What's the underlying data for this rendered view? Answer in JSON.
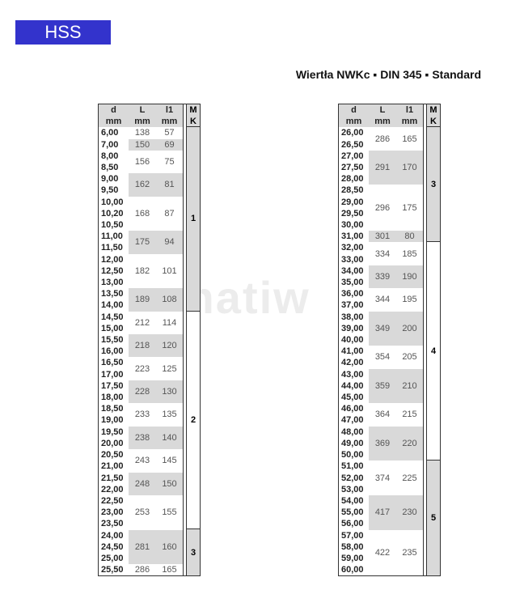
{
  "badge": "HSS",
  "title": "Wiertła NWKc ▪ DIN 345 ▪ Standard",
  "watermark": "matiw",
  "colors": {
    "badge": "#3333cc",
    "shade": "#d9d9d9"
  },
  "headers": {
    "d": "d",
    "L": "L",
    "l1": "l1",
    "mk_top": "M",
    "mk_bottom": "K",
    "unit": "mm"
  },
  "tables": [
    {
      "groups": [
        {
          "d": [
            "6,00"
          ],
          "L": "138",
          "l1": "57",
          "shaded": false
        },
        {
          "d": [
            "7,00"
          ],
          "L": "150",
          "l1": "69",
          "shaded": true
        },
        {
          "d": [
            "8,00",
            "8,50"
          ],
          "L": "156",
          "l1": "75",
          "shaded": false
        },
        {
          "d": [
            "9,00",
            "9,50"
          ],
          "L": "162",
          "l1": "81",
          "shaded": true
        },
        {
          "d": [
            "10,00",
            "10,20",
            "10,50"
          ],
          "L": "168",
          "l1": "87",
          "shaded": false
        },
        {
          "d": [
            "11,00",
            "11,50"
          ],
          "L": "175",
          "l1": "94",
          "shaded": true
        },
        {
          "d": [
            "12,00",
            "12,50",
            "13,00"
          ],
          "L": "182",
          "l1": "101",
          "shaded": false
        },
        {
          "d": [
            "13,50",
            "14,00"
          ],
          "L": "189",
          "l1": "108",
          "shaded": true
        },
        {
          "d": [
            "14,50",
            "15,00"
          ],
          "L": "212",
          "l1": "114",
          "shaded": false
        },
        {
          "d": [
            "15,50",
            "16,00"
          ],
          "L": "218",
          "l1": "120",
          "shaded": true
        },
        {
          "d": [
            "16,50",
            "17,00"
          ],
          "L": "223",
          "l1": "125",
          "shaded": false
        },
        {
          "d": [
            "17,50",
            "18,00"
          ],
          "L": "228",
          "l1": "130",
          "shaded": true
        },
        {
          "d": [
            "18,50",
            "19,00"
          ],
          "L": "233",
          "l1": "135",
          "shaded": false
        },
        {
          "d": [
            "19,50",
            "20,00"
          ],
          "L": "238",
          "l1": "140",
          "shaded": true
        },
        {
          "d": [
            "20,50",
            "21,00"
          ],
          "L": "243",
          "l1": "145",
          "shaded": false
        },
        {
          "d": [
            "21,50",
            "22,00"
          ],
          "L": "248",
          "l1": "150",
          "shaded": true
        },
        {
          "d": [
            "22,50",
            "23,00",
            "23,50"
          ],
          "L": "253",
          "l1": "155",
          "shaded": false
        },
        {
          "d": [
            "24,00",
            "24,50",
            "25,00"
          ],
          "L": "281",
          "l1": "160",
          "shaded": true
        },
        {
          "d": [
            "25,50"
          ],
          "L": "286",
          "l1": "165",
          "shaded": false
        }
      ],
      "mk": [
        {
          "label": "1",
          "rows": 16,
          "shaded": true
        },
        {
          "label": "2",
          "rows": 19,
          "shaded": false
        },
        {
          "label": "3",
          "rows": 4,
          "shaded": true
        }
      ]
    },
    {
      "groups": [
        {
          "d": [
            "26,00",
            "26,50"
          ],
          "L": "286",
          "l1": "165",
          "shaded": false
        },
        {
          "d": [
            "27,00",
            "27,50",
            "28,00"
          ],
          "L": "291",
          "l1": "170",
          "shaded": true
        },
        {
          "d": [
            "28,50",
            "29,00",
            "29,50",
            "30,00"
          ],
          "L": "296",
          "l1": "175",
          "shaded": false
        },
        {
          "d": [
            "31,00"
          ],
          "L": "301",
          "l1": "80",
          "shaded": true
        },
        {
          "d": [
            "32,00",
            "33,00"
          ],
          "L": "334",
          "l1": "185",
          "shaded": false
        },
        {
          "d": [
            "34,00",
            "35,00"
          ],
          "L": "339",
          "l1": "190",
          "shaded": true
        },
        {
          "d": [
            "36,00",
            "37,00"
          ],
          "L": "344",
          "l1": "195",
          "shaded": false
        },
        {
          "d": [
            "38,00",
            "39,00",
            "40,00"
          ],
          "L": "349",
          "l1": "200",
          "shaded": true
        },
        {
          "d": [
            "41,00",
            "42,00"
          ],
          "L": "354",
          "l1": "205",
          "shaded": false
        },
        {
          "d": [
            "43,00",
            "44,00",
            "45,00"
          ],
          "L": "359",
          "l1": "210",
          "shaded": true
        },
        {
          "d": [
            "46,00",
            "47,00"
          ],
          "L": "364",
          "l1": "215",
          "shaded": false
        },
        {
          "d": [
            "48,00",
            "49,00",
            "50,00"
          ],
          "L": "369",
          "l1": "220",
          "shaded": true
        },
        {
          "d": [
            "51,00",
            "52,00",
            "53,00"
          ],
          "L": "374",
          "l1": "225",
          "shaded": false
        },
        {
          "d": [
            "54,00",
            "55,00",
            "56,00"
          ],
          "L": "417",
          "l1": "230",
          "shaded": true
        },
        {
          "d": [
            "57,00",
            "58,00",
            "59,00",
            "60,00"
          ],
          "L": "422",
          "l1": "235",
          "shaded": false
        }
      ],
      "mk": [
        {
          "label": "3",
          "rows": 10,
          "shaded": true
        },
        {
          "label": "4",
          "rows": 19,
          "shaded": false
        },
        {
          "label": "5",
          "rows": 10,
          "shaded": true
        }
      ]
    }
  ]
}
